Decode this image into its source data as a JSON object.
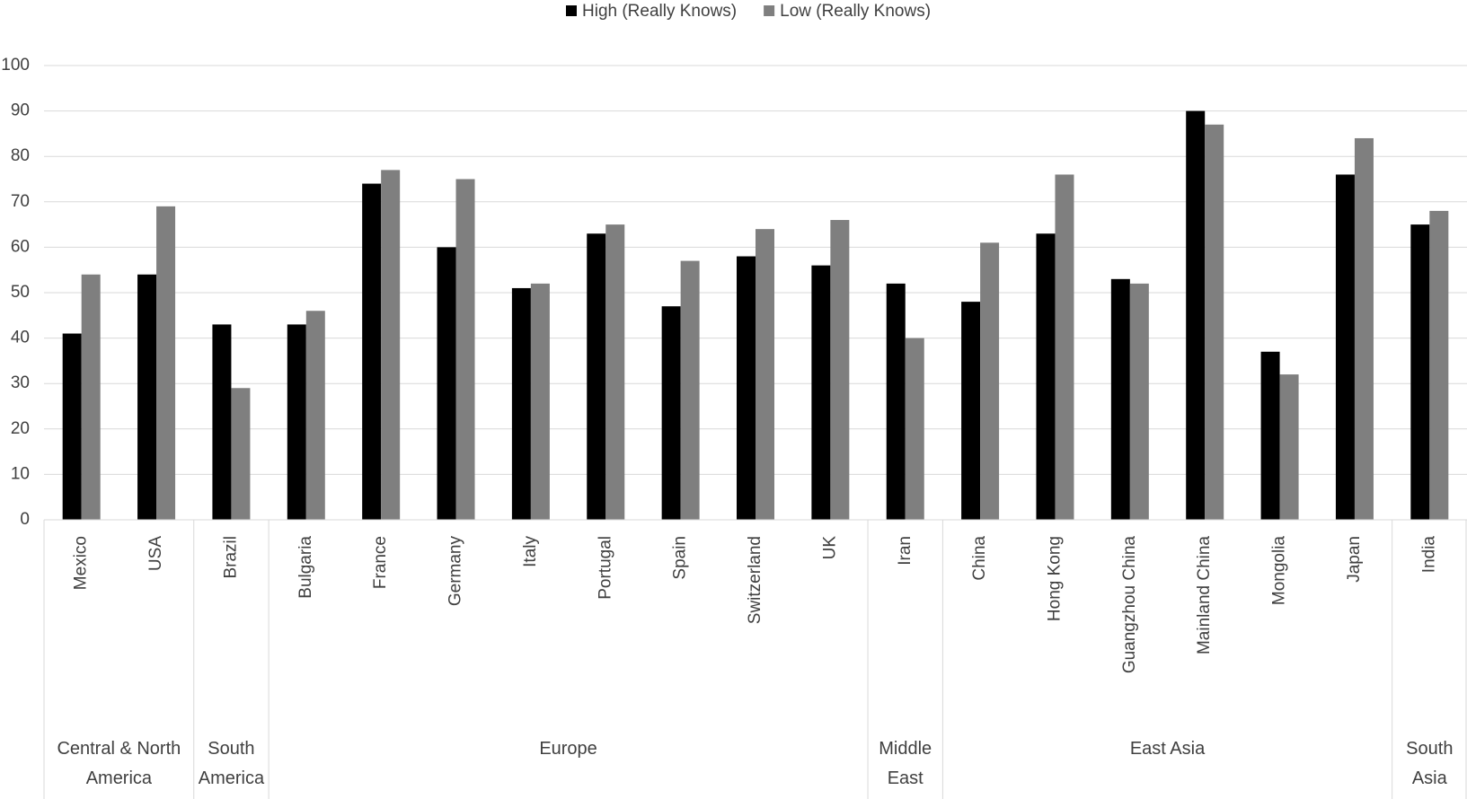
{
  "chart_data": {
    "type": "bar",
    "categories": [
      "Mexico",
      "USA",
      "Brazil",
      "Bulgaria",
      "France",
      "Germany",
      "Italy",
      "Portugal",
      "Spain",
      "Switzerland",
      "UK",
      "Iran",
      "China",
      "Hong Kong",
      "Guangzhou China",
      "Mainland China",
      "Mongolia",
      "Japan",
      "India"
    ],
    "category_groups": [
      "Central & North America",
      "Central & North America",
      "South America",
      "Europe",
      "Europe",
      "Europe",
      "Europe",
      "Europe",
      "Europe",
      "Europe",
      "Europe",
      "Middle East",
      "East Asia",
      "East Asia",
      "East Asia",
      "East Asia",
      "East Asia",
      "East Asia",
      "South Asia"
    ],
    "series": [
      {
        "name": "High (Really Knows)",
        "color": "#000000",
        "values": [
          41,
          54,
          43,
          43,
          74,
          60,
          51,
          63,
          47,
          58,
          56,
          52,
          48,
          63,
          53,
          90,
          37,
          76,
          65
        ]
      },
      {
        "name": "Low (Really Knows)",
        "color": "#7f7f7f",
        "values": [
          54,
          69,
          29,
          46,
          77,
          75,
          52,
          65,
          57,
          64,
          66,
          40,
          61,
          76,
          52,
          87,
          32,
          84,
          68
        ]
      }
    ],
    "ylim": [
      0,
      100
    ],
    "yticks": [
      0,
      10,
      20,
      30,
      40,
      50,
      60,
      70,
      80,
      90,
      100
    ],
    "grid": true,
    "legend": "top"
  }
}
